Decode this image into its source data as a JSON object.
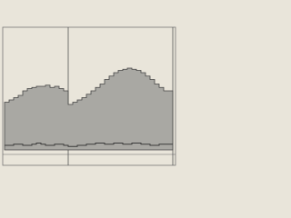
{
  "chart_data": {
    "type": "area-step",
    "categories": [
      null,
      null,
      null,
      null,
      null,
      null,
      null,
      null,
      null,
      null,
      null,
      null,
      null,
      null,
      null,
      null,
      null,
      null,
      null,
      null,
      null,
      null,
      null,
      null,
      null,
      null,
      null,
      null,
      null,
      null,
      null,
      null,
      null,
      null,
      null,
      null,
      null
    ],
    "ylim": [
      0,
      100
    ],
    "series": [
      {
        "color": "#a9a8a3",
        "values": [
          42,
          44,
          46,
          48,
          52,
          54,
          55,
          56,
          56,
          57,
          55,
          56,
          54,
          52,
          40,
          42,
          44,
          46,
          49,
          52,
          55,
          58,
          62,
          65,
          68,
          70,
          71,
          72,
          71,
          70,
          68,
          65,
          62,
          58,
          55,
          52,
          52
        ]
      },
      {
        "color": "#3a3a3a",
        "values": [
          4,
          4,
          5,
          5,
          4,
          4,
          5,
          6,
          5,
          4,
          4,
          5,
          5,
          4,
          3,
          3,
          4,
          4,
          5,
          5,
          6,
          6,
          5,
          5,
          6,
          6,
          5,
          5,
          6,
          6,
          5,
          5,
          4,
          4,
          5,
          5,
          5
        ]
      }
    ]
  }
}
